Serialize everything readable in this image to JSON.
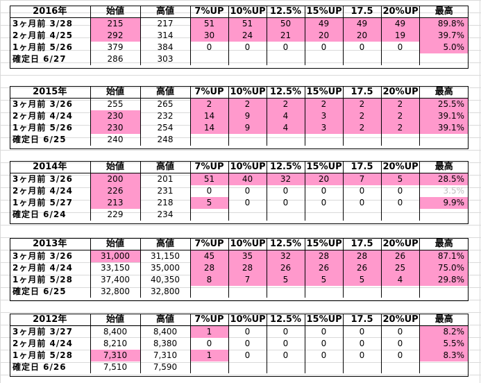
{
  "columns": [
    "始値",
    "高値",
    "7%UP",
    "10%UP",
    "12.5%",
    "15%UP",
    "17.5",
    "20%UP",
    "最高"
  ],
  "blocks": [
    {
      "year": "2016年",
      "rows": [
        {
          "label": "3ヶ月前 3/28",
          "open": "215",
          "high": "217",
          "ups": [
            "51",
            "51",
            "50",
            "49",
            "49",
            "49"
          ],
          "max": "89.8%",
          "pink_open": true,
          "pink_ups": true,
          "pink_max": true
        },
        {
          "label": "2ヶ月前 4/25",
          "open": "292",
          "high": "314",
          "ups": [
            "30",
            "24",
            "21",
            "20",
            "20",
            "19"
          ],
          "max": "39.7%",
          "pink_open": true,
          "pink_ups": true,
          "pink_max": true
        },
        {
          "label": "1ヶ月前 5/26",
          "open": "379",
          "high": "384",
          "ups": [
            "0",
            "0",
            "0",
            "0",
            "0",
            "0"
          ],
          "max": "5.0%",
          "pink_open": false,
          "pink_ups": false,
          "pink_max": true
        },
        {
          "label": "確定日 6/27",
          "open": "286",
          "high": "303",
          "ups": [
            "",
            "",
            "",
            "",
            "",
            ""
          ],
          "max": "",
          "pink_open": false,
          "pink_ups": false,
          "pink_max": false
        }
      ]
    },
    {
      "year": "2015年",
      "rows": [
        {
          "label": "3ヶ月前 3/26",
          "open": "255",
          "high": "265",
          "ups": [
            "2",
            "2",
            "2",
            "2",
            "2",
            "2"
          ],
          "max": "25.5%",
          "pink_open": false,
          "pink_ups": true,
          "pink_max": true
        },
        {
          "label": "2ヶ月前 4/24",
          "open": "230",
          "high": "232",
          "ups": [
            "14",
            "9",
            "4",
            "3",
            "2",
            "2"
          ],
          "max": "39.1%",
          "pink_open": true,
          "pink_ups": true,
          "pink_max": true
        },
        {
          "label": "1ヶ月前 5/26",
          "open": "230",
          "high": "254",
          "ups": [
            "14",
            "9",
            "4",
            "3",
            "2",
            "2"
          ],
          "max": "39.1%",
          "pink_open": true,
          "pink_ups": true,
          "pink_max": true
        },
        {
          "label": "確定日 6/25",
          "open": "240",
          "high": "248",
          "ups": [
            "",
            "",
            "",
            "",
            "",
            ""
          ],
          "max": "",
          "pink_open": false,
          "pink_ups": false,
          "pink_max": false
        }
      ]
    },
    {
      "year": "2014年",
      "rows": [
        {
          "label": "3ヶ月前 3/26",
          "open": "200",
          "high": "201",
          "ups": [
            "51",
            "40",
            "32",
            "20",
            "7",
            "5"
          ],
          "max": "28.5%",
          "pink_open": true,
          "pink_ups": true,
          "pink_max": true
        },
        {
          "label": "2ヶ月前 4/24",
          "open": "226",
          "high": "231",
          "ups": [
            "0",
            "0",
            "0",
            "0",
            "0",
            "0"
          ],
          "max": "3.5%",
          "pink_open": true,
          "pink_ups": false,
          "pink_max": false,
          "faint_max": true
        },
        {
          "label": "1ヶ月前 5/27",
          "open": "213",
          "high": "218",
          "ups": [
            "5",
            "0",
            "0",
            "0",
            "0",
            "0"
          ],
          "max": "9.9%",
          "pink_open": true,
          "pink_ups": false,
          "pink_first_up": true,
          "pink_max": true
        },
        {
          "label": "確定日 6/24",
          "open": "229",
          "high": "234",
          "ups": [
            "",
            "",
            "",
            "",
            "",
            ""
          ],
          "max": "",
          "pink_open": false,
          "pink_ups": false,
          "pink_max": false
        }
      ]
    },
    {
      "year": "2013年",
      "rows": [
        {
          "label": "3ヶ月前 3/26",
          "open": "31,000",
          "high": "31,150",
          "ups": [
            "45",
            "35",
            "32",
            "28",
            "28",
            "26"
          ],
          "max": "87.1%",
          "pink_open": true,
          "pink_ups": true,
          "pink_max": true
        },
        {
          "label": "2ヶ月前 4/24",
          "open": "33,150",
          "high": "35,000",
          "ups": [
            "28",
            "28",
            "26",
            "26",
            "26",
            "25"
          ],
          "max": "75.0%",
          "pink_open": false,
          "pink_ups": true,
          "pink_max": true
        },
        {
          "label": "1ヶ月前 5/28",
          "open": "37,400",
          "high": "40,350",
          "ups": [
            "8",
            "7",
            "5",
            "5",
            "5",
            "4"
          ],
          "max": "29.8%",
          "pink_open": false,
          "pink_ups": true,
          "pink_max": true
        },
        {
          "label": "確定日 6/25",
          "open": "32,800",
          "high": "32,800",
          "ups": [
            "",
            "",
            "",
            "",
            "",
            ""
          ],
          "max": "",
          "pink_open": false,
          "pink_ups": false,
          "pink_max": false
        }
      ]
    },
    {
      "year": "2012年",
      "rows": [
        {
          "label": "3ヶ月前 3/27",
          "open": "8,400",
          "high": "8,400",
          "ups": [
            "1",
            "0",
            "0",
            "0",
            "0",
            "0"
          ],
          "max": "8.2%",
          "pink_open": false,
          "pink_ups": false,
          "pink_first_up": true,
          "pink_max": true
        },
        {
          "label": "2ヶ月前 4/24",
          "open": "8,210",
          "high": "8,380",
          "ups": [
            "0",
            "0",
            "0",
            "0",
            "0",
            "0"
          ],
          "max": "5.5%",
          "pink_open": false,
          "pink_ups": false,
          "pink_max": true
        },
        {
          "label": "1ヶ月前 5/28",
          "open": "7,310",
          "high": "7,310",
          "ups": [
            "1",
            "0",
            "0",
            "0",
            "0",
            "0"
          ],
          "max": "8.3%",
          "pink_open": true,
          "pink_ups": false,
          "pink_first_up": true,
          "pink_max": true
        },
        {
          "label": "確定日 6/26",
          "open": "7,510",
          "high": "7,590",
          "ups": [
            "",
            "",
            "",
            "",
            "",
            ""
          ],
          "max": "",
          "pink_open": false,
          "pink_ups": false,
          "pink_max": false
        }
      ]
    }
  ],
  "colors": {
    "highlight": "#ff99cc",
    "grid": "#d9d9d9",
    "faint": "#c0c0c0"
  }
}
